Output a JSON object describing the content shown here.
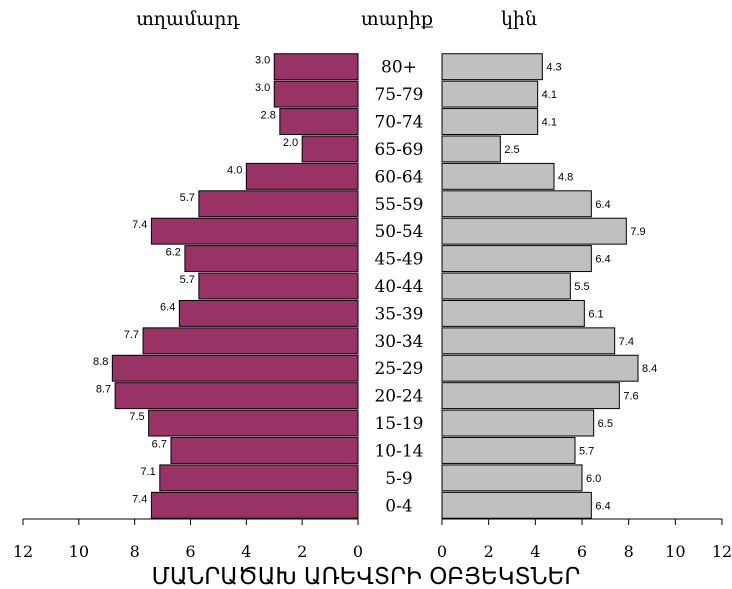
{
  "chart_data": {
    "type": "bar",
    "orientation": "horizontal",
    "layout": "population-pyramid",
    "left_header": "տղամարդ",
    "center_header": "տարիք",
    "right_header": "կին",
    "footer": "ՄԱՆՐԱԾԱԽ ԱՌԵՎՏՐԻ ՕԲՅԵԿՏՆԵՐ",
    "categories": [
      "0-4",
      "5-9",
      "10-14",
      "15-19",
      "20-24",
      "25-29",
      "30-34",
      "35-39",
      "40-44",
      "45-49",
      "50-54",
      "55-59",
      "60-64",
      "65-69",
      "70-74",
      "75-79",
      "80+"
    ],
    "series": [
      {
        "name": "տղամարդ",
        "side": "left",
        "color": "#993366",
        "values": [
          7.4,
          7.1,
          6.7,
          7.5,
          8.7,
          8.8,
          7.7,
          6.4,
          5.7,
          6.2,
          7.4,
          5.7,
          4.0,
          2.0,
          2.8,
          3.0,
          3.0
        ],
        "labels": [
          "7.4",
          "7.1",
          "6.7",
          "7.5",
          "8.7",
          "8.8",
          "7.7",
          "6.4",
          "5.7",
          "6.2",
          "7.4",
          "5.7",
          "4.0",
          "2.0",
          "2.8",
          "3.0",
          "3.0"
        ]
      },
      {
        "name": "կին",
        "side": "right",
        "color": "#c0c0c0",
        "values": [
          6.4,
          6.0,
          5.7,
          6.5,
          7.6,
          8.4,
          7.4,
          6.1,
          5.5,
          6.4,
          7.9,
          6.4,
          4.8,
          2.5,
          4.1,
          4.1,
          4.3
        ],
        "labels": [
          "6.4",
          "6.0",
          "5.7",
          "6.5",
          "7.6",
          "8.4",
          "7.4",
          "6.1",
          "5.5",
          "6.4",
          "7.9",
          "6.4",
          "4.8",
          "2.5",
          "4.1",
          "4.1",
          "4.3"
        ]
      }
    ],
    "xlim": [
      0,
      12
    ],
    "left_ticks": [
      "12",
      "10",
      "8",
      "6",
      "4",
      "2",
      "0"
    ],
    "right_ticks": [
      "0",
      "2",
      "4",
      "6",
      "8",
      "10",
      "12"
    ],
    "grid": false
  }
}
